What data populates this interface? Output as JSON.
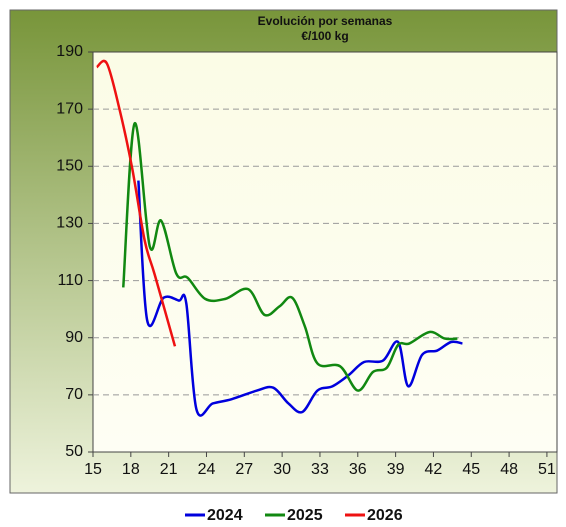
{
  "chart_data": {
    "type": "line",
    "title": "Evolución por semanas",
    "subtitle": "€/100 kg",
    "xlim": [
      15,
      51.8
    ],
    "xticks": [
      15,
      18,
      21,
      24,
      27,
      30,
      33,
      36,
      39,
      42,
      45,
      48,
      51
    ],
    "ylim": [
      50,
      190
    ],
    "yticks": [
      50,
      70,
      90,
      110,
      130,
      150,
      170,
      190
    ],
    "grid": true,
    "legend": "bottom",
    "series": [
      {
        "name": "2024",
        "color": "#0000dd",
        "x": [
          18.6,
          19.3,
          20.6,
          21.8,
          22.4,
          23.2,
          24.5,
          26.0,
          28.0,
          29.3,
          30.5,
          31.6,
          32.8,
          34.0,
          35.3,
          36.5,
          38.0,
          39.2,
          40.0,
          41.1,
          42.3,
          43.4,
          44.3
        ],
        "values": [
          145,
          96,
          104,
          103,
          102,
          65,
          67,
          68.5,
          71.5,
          72.5,
          67,
          64,
          71.5,
          73,
          77,
          81.5,
          82,
          88.5,
          73,
          84,
          85.5,
          88.5,
          88
        ]
      },
      {
        "name": "2025",
        "color": "#118811",
        "x": [
          17.4,
          18.3,
          19.5,
          20.4,
          21.6,
          22.5,
          23.9,
          25.5,
          27.3,
          28.6,
          29.8,
          30.8,
          31.8,
          32.8,
          34.6,
          36.0,
          37.2,
          38.3,
          39.2,
          40.1,
          41.7,
          42.9,
          43.9
        ],
        "values": [
          107.6,
          165,
          122,
          131,
          112.5,
          111,
          103.6,
          103.6,
          107,
          98,
          101,
          104,
          94,
          81,
          80,
          71.5,
          78,
          79.5,
          87.5,
          88,
          92,
          89.7,
          89.7
        ]
      },
      {
        "name": "2026",
        "color": "#ee1111",
        "x": [
          15.3,
          16.1,
          17.1,
          18.1,
          19.1,
          19.9,
          21.5
        ],
        "values": [
          184.7,
          186,
          170,
          149.5,
          124,
          112,
          87
        ]
      }
    ]
  }
}
